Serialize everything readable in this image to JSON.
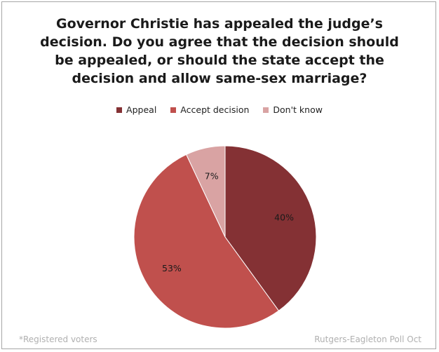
{
  "chart_data": {
    "type": "pie",
    "title": "Governor Christie has appealed the judge’s decision. Do you agree that the decision should be appealed, or should the state accept the decision and allow same-sex marriage?",
    "categories": [
      "Appeal",
      "Accept decision",
      "Don't know"
    ],
    "values": [
      40,
      53,
      7
    ],
    "value_labels": [
      "40%",
      "53%",
      "7%"
    ],
    "colors": [
      "#843134",
      "#c0504d",
      "#d9a3a3"
    ],
    "legend_position": "top"
  },
  "footer": {
    "left": "*Registered voters",
    "right": "Rutgers-Eagleton Poll Oct"
  }
}
